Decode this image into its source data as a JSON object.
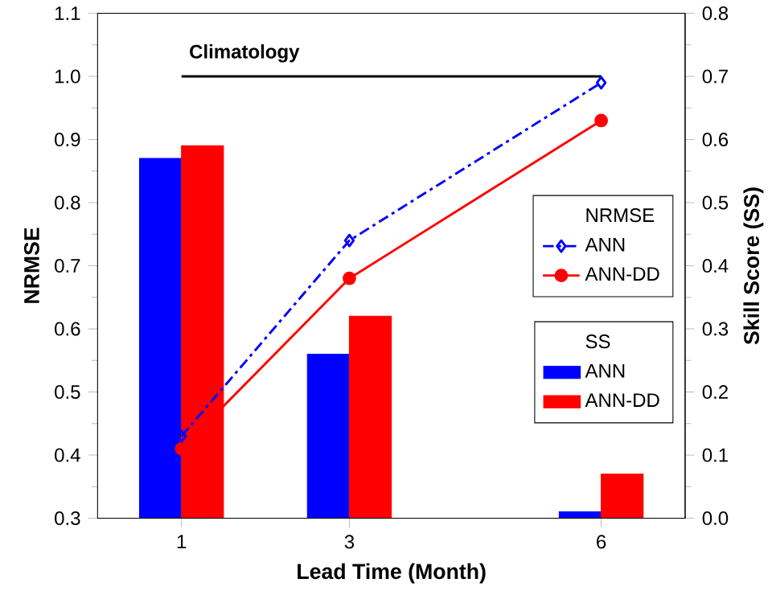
{
  "chart_data": {
    "type": "bar",
    "xlabel": "Lead Time (Month)",
    "ylabel": "NRMSE",
    "y2label": "Skill Score (SS)",
    "annotations": [
      "NRMSE",
      "SS"
    ],
    "x": [
      1,
      3,
      6
    ],
    "xlim": [
      0,
      7
    ],
    "xticks": [
      1,
      3,
      6
    ],
    "ylim": [
      0.3,
      1.1
    ],
    "yticks": [
      0.3,
      0.4,
      0.5,
      0.6,
      0.7,
      0.8,
      0.9,
      {
        "value": 1.0,
        "label": "1.0"
      },
      1.1
    ],
    "y2lim": [
      0,
      0.8
    ],
    "y2ticks": [
      {
        "value": 0,
        "label": "0.0"
      },
      0.1,
      0.2,
      0.3,
      0.4,
      0.5,
      0.6,
      0.7,
      0.8
    ],
    "legend": "right",
    "series": [
      {
        "name": "ANN",
        "axis": "y2",
        "color": "#0000ff",
        "values": [
          0.57,
          0.26,
          0.01
        ]
      },
      {
        "name": "ANN-DD",
        "axis": "y2",
        "color": "#ff0000",
        "values": [
          0.59,
          0.32,
          0.07
        ]
      },
      {
        "name": "ANN",
        "type": "line",
        "color": "#0000ff",
        "marker": "diamond",
        "line_style": "dashed",
        "values": [
          0.43,
          0.74,
          0.99
        ]
      },
      {
        "name": "ANN-DD",
        "type": "line",
        "color": "#ff0000",
        "marker": "circle",
        "line_style": "solid",
        "values": [
          0.41,
          0.68,
          0.93
        ]
      },
      {
        "name": "Climatology",
        "type": "line",
        "color": "#000000",
        "marker": "none",
        "line_style": "solid",
        "x": [
          1,
          6
        ],
        "values": [
          1.0,
          1.0
        ]
      }
    ]
  }
}
